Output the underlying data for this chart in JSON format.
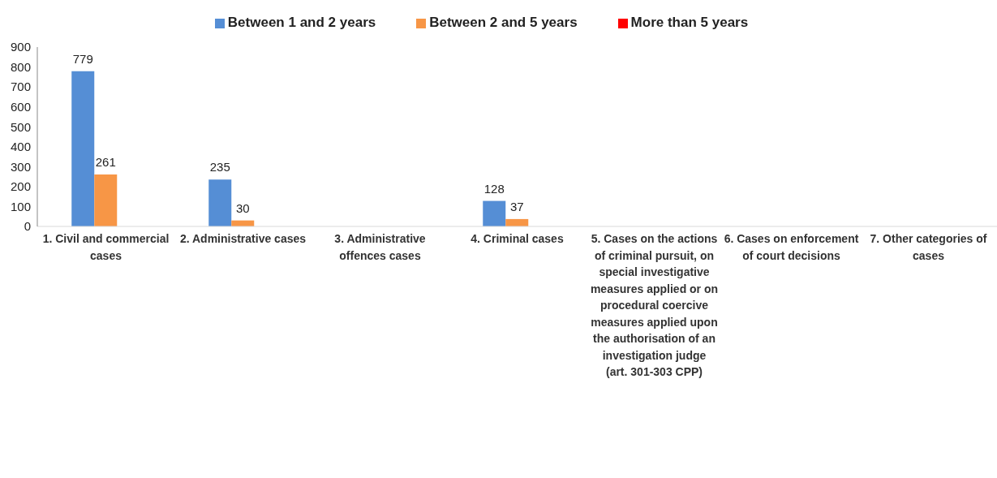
{
  "chart_data": {
    "type": "bar",
    "categories": [
      "1.  Civil and commercial cases",
      "2.  Administrative cases",
      "3. Administrative offences cases",
      "4. Criminal cases",
      "5. Cases on the actions of criminal pursuit, on special investigative measures applied or on procedural coercive measures applied upon the authorisation of an investigation judge (art. 301-303 CPP)",
      "6. Cases on enforcement of court decisions",
      "7. Other categories of cases"
    ],
    "series": [
      {
        "name": "Between 1 and 2 years",
        "color": "#558ed5",
        "values": [
          779,
          235,
          null,
          128,
          null,
          null,
          null
        ]
      },
      {
        "name": "Between 2 and 5 years",
        "color": "#f79646",
        "values": [
          261,
          30,
          null,
          37,
          null,
          null,
          null
        ]
      },
      {
        "name": "More than 5 years",
        "color": "#ff0000",
        "values": [
          null,
          null,
          null,
          null,
          null,
          null,
          null
        ]
      }
    ],
    "ylim": [
      0,
      900
    ],
    "yticks": [
      0,
      100,
      200,
      300,
      400,
      500,
      600,
      700,
      800,
      900
    ],
    "grid": false,
    "legend": "top",
    "data_labels": true
  }
}
